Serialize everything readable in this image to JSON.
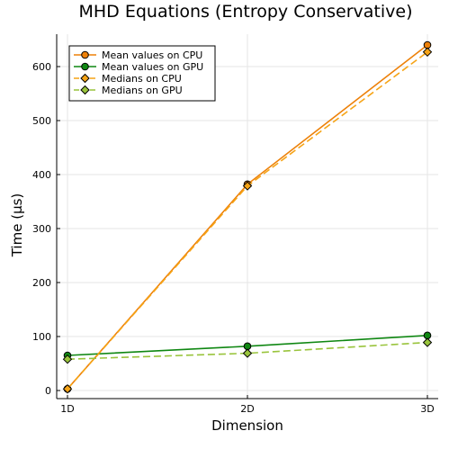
{
  "chart_data": {
    "type": "line",
    "title": "MHD Equations (Entropy Conservative)",
    "xlabel": "Dimension",
    "ylabel": "Time (μs)",
    "categories": [
      "1D",
      "2D",
      "3D"
    ],
    "ylim": [
      -15,
      660
    ],
    "yticks": [
      0,
      100,
      200,
      300,
      400,
      500,
      600
    ],
    "grid": true,
    "legend_position": "top-left",
    "series": [
      {
        "name": "Mean values on CPU",
        "values": [
          3,
          382,
          640
        ],
        "color": "#ed8109",
        "marker": "circle",
        "dash": "solid"
      },
      {
        "name": "Mean values on GPU",
        "values": [
          65,
          82,
          102
        ],
        "color": "#0f8712",
        "marker": "circle",
        "dash": "solid"
      },
      {
        "name": "Medians on CPU",
        "values": [
          3,
          379,
          627
        ],
        "color": "#f6a417",
        "marker": "diamond",
        "dash": "dashed"
      },
      {
        "name": "Medians on GPU",
        "values": [
          58,
          69,
          89
        ],
        "color": "#99c43c",
        "marker": "diamond",
        "dash": "dashed"
      }
    ]
  }
}
